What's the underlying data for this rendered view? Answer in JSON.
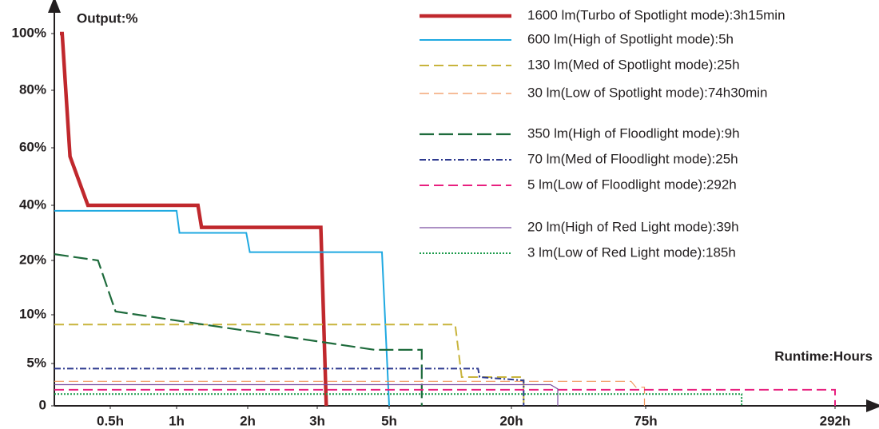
{
  "chart_data": {
    "type": "line",
    "y_label": "Output:%",
    "x_label": "Runtime:Hours",
    "xlim": [
      0,
      292
    ],
    "ylim": [
      0,
      100
    ],
    "scale": "piecewise",
    "xticks": [
      {
        "value": 0.5,
        "label": "0.5h"
      },
      {
        "value": 1,
        "label": "1h"
      },
      {
        "value": 2,
        "label": "2h"
      },
      {
        "value": 3,
        "label": "3h"
      },
      {
        "value": 5,
        "label": "5h"
      },
      {
        "value": 20,
        "label": "20h"
      },
      {
        "value": 75,
        "label": "75h"
      },
      {
        "value": 292,
        "label": "292h"
      }
    ],
    "yticks": [
      0,
      {
        "value": 5,
        "label": "5%"
      },
      {
        "value": 10,
        "label": "10%"
      },
      {
        "value": 20,
        "label": "20%"
      },
      {
        "value": 40,
        "label": "40%"
      },
      {
        "value": 60,
        "label": "60%"
      },
      {
        "value": 80,
        "label": "80%"
      },
      {
        "value": 100,
        "label": "100%"
      }
    ],
    "series": [
      {
        "name": "1600 lm(Turbo of Spotlight mode):3h15min",
        "color": "#c0282d",
        "style": "bold",
        "x": [
          0.05,
          0.07,
          0.14,
          0.3,
          1.3,
          1.35,
          3.1,
          3.25
        ],
        "values": [
          100,
          100,
          57,
          40,
          40,
          32,
          32,
          0
        ]
      },
      {
        "name": "600 lm(High of Spotlight mode):5h",
        "color": "#1fa9e1",
        "style": "solid",
        "x": [
          0,
          1,
          1.04,
          1.98,
          2.03,
          4.8,
          5
        ],
        "values": [
          38,
          38,
          30,
          30,
          23,
          23,
          0
        ]
      },
      {
        "name": "130 lm(Med of Spotlight mode):25h",
        "color": "#c8b43c",
        "style": "dash",
        "x": [
          0,
          13.1,
          13.9,
          25,
          25
        ],
        "values": [
          9,
          9,
          3.4,
          3.4,
          0
        ]
      },
      {
        "name": "30 lm(Low of Spotlight mode):74h30min",
        "color": "#f0955a",
        "style": "thin-dash",
        "x": [
          0,
          69,
          71,
          74.5,
          74.5
        ],
        "values": [
          2.9,
          2.9,
          2.2,
          2.2,
          0
        ]
      },
      {
        "name": "350 lm(High of Floodlight mode):9h",
        "color": "#1e6b3c",
        "style": "long-dash",
        "x": [
          0,
          0.39,
          0.54,
          4.6,
          9,
          9
        ],
        "values": [
          22.3,
          20,
          10.6,
          6.4,
          6.4,
          0
        ]
      },
      {
        "name": "70 lm(Med of Floodlight mode):25h",
        "color": "#2e3a8f",
        "style": "dash-dot",
        "x": [
          0,
          15.9,
          16.1,
          25,
          25
        ],
        "values": [
          4.4,
          4.4,
          3.4,
          3.0,
          0
        ]
      },
      {
        "name": "5 lm(Low of Floodlight mode):292h",
        "color": "#e8207f",
        "style": "dash",
        "x": [
          0,
          292,
          292
        ],
        "values": [
          1.9,
          1.9,
          0
        ]
      },
      {
        "name": "20 lm(High of Red Light mode):39h",
        "color": "#7b4ea0",
        "style": "thin",
        "x": [
          0,
          36,
          39,
          39
        ],
        "values": [
          2.5,
          2.5,
          2.0,
          0
        ]
      },
      {
        "name": "3 lm(Low of Red Light mode):185h",
        "color": "#1a9a4a",
        "style": "dot",
        "x": [
          0,
          185,
          185
        ],
        "values": [
          1.4,
          1.4,
          0
        ]
      }
    ]
  }
}
